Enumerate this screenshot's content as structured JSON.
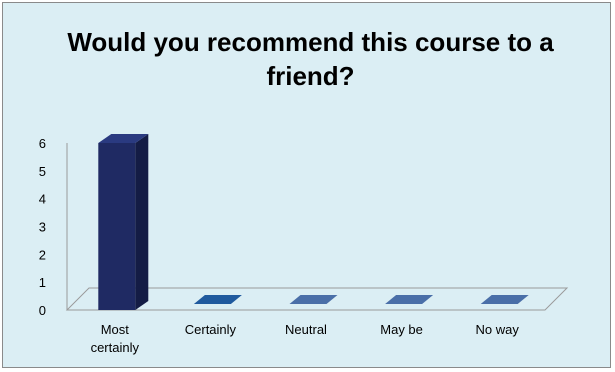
{
  "chart_data": {
    "type": "bar",
    "title": "Would you recommend this course to a friend?",
    "categories": [
      "Most certainly",
      "Certainly",
      "Neutral",
      "May be",
      "No way"
    ],
    "category_lines": [
      [
        "Most",
        "certainly"
      ],
      [
        "Certainly"
      ],
      [
        "Neutral"
      ],
      [
        "May be"
      ],
      [
        "No way"
      ]
    ],
    "values": [
      6,
      0,
      0,
      0,
      0
    ],
    "ylim": [
      0,
      6
    ],
    "yticks": [
      "0",
      "1",
      "2",
      "3",
      "4",
      "5",
      "6"
    ],
    "xlabel": "",
    "ylabel": "",
    "grid": false,
    "legend": "none",
    "style": "3d-column"
  },
  "colors": {
    "background": "#dbeef4",
    "border": "#8a8a8a",
    "bar_main_front": "#1f2a63",
    "bar_main_side": "#141c45",
    "bar_main_top": "#2a3a80",
    "bar_zero_dark": "#1f5a9e",
    "bar_zero_light": "#4a6fa8",
    "axis": "#9a9a9a"
  }
}
